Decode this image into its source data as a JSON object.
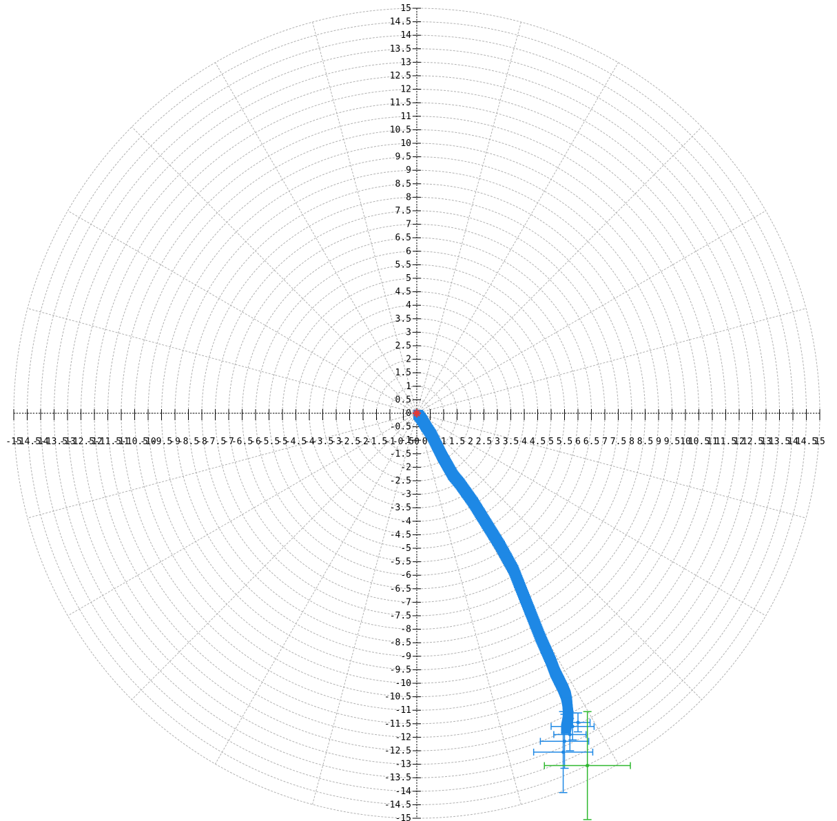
{
  "chart_data": {
    "type": "scatter",
    "title": "",
    "xlabel": "",
    "ylabel": "",
    "xlim": [
      -15,
      15
    ],
    "ylim": [
      -15,
      15
    ],
    "grid": "polar (concentric dashed circles every 0.5, radial spokes every 15 degrees)",
    "legend": "none",
    "y_tick_labels": [
      "15",
      "14.5",
      "14",
      "13.5",
      "13",
      "12.5",
      "12",
      "11.5",
      "11",
      "10.5",
      "10",
      "9.5",
      "9",
      "8.5",
      "8",
      "7.5",
      "7",
      "6.5",
      "6",
      "5.5",
      "5",
      "4.5",
      "4",
      "3.5",
      "3",
      "2.5",
      "2",
      "1.5",
      "1",
      "0.5",
      "0",
      "-0.5",
      "-1",
      "-1.5",
      "-2",
      "-2.5",
      "-3",
      "-3.5",
      "-4",
      "-4.5",
      "-5",
      "-5.5",
      "-6",
      "-6.5",
      "-7",
      "-7.5",
      "-8",
      "-8.5",
      "-9",
      "-9.5",
      "-10",
      "-10.5",
      "-11",
      "-11.5",
      "-12",
      "-12.5",
      "-13",
      "-13.5",
      "-14",
      "-14.5",
      "-15"
    ],
    "x_tick_labels": [
      "-15",
      "-14.5",
      "-14",
      "-13.5",
      "-13",
      "-12.5",
      "-12",
      "-11.5",
      "-11",
      "-10.5",
      "-10",
      "-9.5",
      "-9",
      "-8.5",
      "-8",
      "-7.5",
      "-7",
      "-6.5",
      "-6",
      "-5.5",
      "-5",
      "-4.5",
      "-4",
      "-3.5",
      "-3",
      "-2.5",
      "-2",
      "-1.5",
      "-1",
      "-0.5",
      "0",
      "0.5",
      "1",
      "1.5",
      "2",
      "2.5",
      "3",
      "3.5",
      "4",
      "4.5",
      "5",
      "5.5",
      "6",
      "6.5",
      "7",
      "7.5",
      "8",
      "8.5",
      "9",
      "9.5",
      "10",
      "10.5",
      "11",
      "11.5",
      "12",
      "12.5",
      "13",
      "13.5",
      "14",
      "14.5",
      "15"
    ],
    "series": [
      {
        "color": "#1e88e5",
        "marker": "square",
        "x": [
          0.05,
          0.2,
          0.35,
          0.55,
          0.75,
          0.95,
          1.15,
          1.35,
          1.6,
          1.85,
          2.1,
          2.35,
          2.6,
          2.85,
          3.1,
          3.35,
          3.6,
          3.8,
          4.0,
          4.2,
          4.4,
          4.6,
          4.8,
          5.0,
          5.15,
          5.3,
          5.45,
          5.55,
          5.6,
          5.62,
          5.65,
          5.6,
          5.55
        ],
        "y": [
          -0.05,
          -0.25,
          -0.5,
          -0.8,
          -1.2,
          -1.6,
          -1.95,
          -2.3,
          -2.6,
          -2.95,
          -3.3,
          -3.7,
          -4.1,
          -4.5,
          -4.9,
          -5.35,
          -5.8,
          -6.3,
          -6.8,
          -7.3,
          -7.8,
          -8.3,
          -8.75,
          -9.2,
          -9.6,
          -9.9,
          -10.2,
          -10.45,
          -10.7,
          -10.95,
          -11.2,
          -11.45,
          -11.7
        ]
      },
      {
        "color": "#1e88e5",
        "marker": "errorbar",
        "points": [
          {
            "x": 5.5,
            "y": -12.15,
            "xerr": 0.9,
            "yerr": 1.0
          },
          {
            "x": 5.45,
            "y": -12.55,
            "xerr": 1.1,
            "yerr": 1.5
          },
          {
            "x": 5.7,
            "y": -11.9,
            "xerr": 0.6,
            "yerr": 0.6
          },
          {
            "x": 5.8,
            "y": -11.6,
            "xerr": 0.8,
            "yerr": 0.5
          },
          {
            "x": 6.0,
            "y": -11.45,
            "xerr": 0.45,
            "yerr": 0.35
          }
        ]
      },
      {
        "color": "#2eb82e",
        "marker": "errorbar",
        "points": [
          {
            "x": 6.35,
            "y": -13.05,
            "xerr": 1.6,
            "yerr": 2.0
          }
        ]
      },
      {
        "color": "#e53935",
        "marker": "star",
        "points": [
          {
            "x": 0.0,
            "y": 0.0
          }
        ]
      }
    ]
  }
}
